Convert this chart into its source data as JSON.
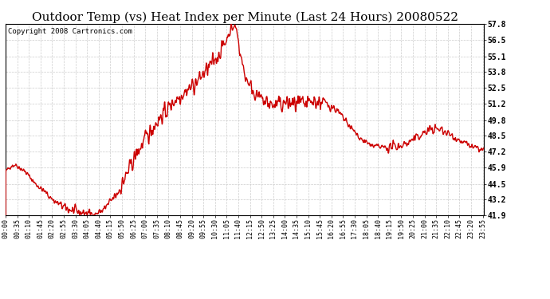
{
  "title": "Outdoor Temp (vs) Heat Index per Minute (Last 24 Hours) 20080522",
  "copyright": "Copyright 2008 Cartronics.com",
  "line_color": "#cc0000",
  "background_color": "#ffffff",
  "grid_color": "#cccccc",
  "ylim": [
    41.9,
    57.8
  ],
  "yticks": [
    41.9,
    43.2,
    44.5,
    45.9,
    47.2,
    48.5,
    49.8,
    51.2,
    52.5,
    53.8,
    55.1,
    56.5,
    57.8
  ],
  "xtick_labels": [
    "00:00",
    "00:35",
    "01:10",
    "01:45",
    "02:20",
    "02:55",
    "03:30",
    "04:05",
    "04:40",
    "05:15",
    "05:50",
    "06:25",
    "07:00",
    "07:35",
    "08:10",
    "08:45",
    "09:20",
    "09:55",
    "10:30",
    "11:05",
    "11:40",
    "12:15",
    "12:50",
    "13:25",
    "14:00",
    "14:35",
    "15:10",
    "15:45",
    "16:20",
    "16:55",
    "17:30",
    "18:05",
    "18:40",
    "19:15",
    "19:50",
    "20:25",
    "21:00",
    "21:35",
    "22:10",
    "22:45",
    "23:20",
    "23:55"
  ],
  "title_fontsize": 11,
  "copyright_fontsize": 6.5,
  "tick_fontsize": 6,
  "line_width": 1.0
}
